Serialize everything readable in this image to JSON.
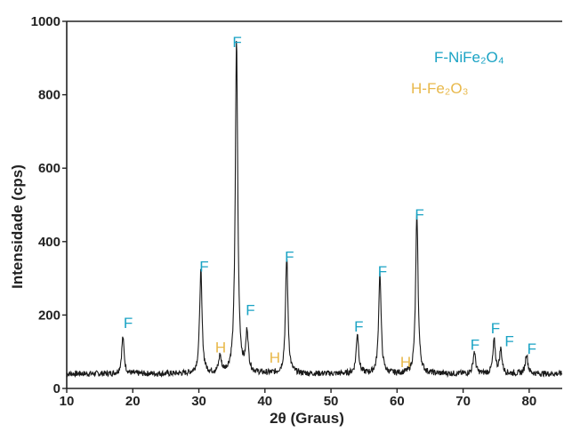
{
  "chart_data": {
    "type": "line",
    "title": "",
    "xlabel": "2θ (Graus)",
    "ylabel": "Intensidade (cps)",
    "xlim": [
      10,
      85
    ],
    "ylim": [
      0,
      1000
    ],
    "grid": false,
    "legend_position": "top-right",
    "xticks": [
      10,
      20,
      30,
      40,
      50,
      60,
      70,
      80
    ],
    "yticks": [
      0,
      200,
      400,
      600,
      800,
      1000
    ],
    "xtick_labels": [
      "10",
      "20",
      "30",
      "40",
      "50",
      "60",
      "70",
      "80"
    ],
    "ytick_labels": [
      "0",
      "200",
      "400",
      "600",
      "800",
      "1000"
    ],
    "line_color": "#1a1a1a",
    "baseline": 40,
    "noise": 8,
    "peaks": [
      {
        "x": 18.5,
        "height": 100,
        "phase": "F"
      },
      {
        "x": 30.3,
        "height": 280,
        "phase": "F"
      },
      {
        "x": 33.2,
        "height": 45,
        "phase": "H"
      },
      {
        "x": 35.7,
        "height": 905,
        "phase": "F"
      },
      {
        "x": 37.3,
        "height": 110,
        "phase": "F"
      },
      {
        "x": 43.3,
        "height": 320,
        "phase": "F"
      },
      {
        "x": 54.0,
        "height": 110,
        "phase": "F"
      },
      {
        "x": 57.4,
        "height": 275,
        "phase": "F"
      },
      {
        "x": 63.0,
        "height": 435,
        "phase": "F"
      },
      {
        "x": 71.7,
        "height": 60,
        "phase": "F"
      },
      {
        "x": 74.7,
        "height": 90,
        "phase": "F"
      },
      {
        "x": 75.7,
        "height": 65,
        "phase": "F"
      },
      {
        "x": 79.6,
        "height": 55,
        "phase": "F"
      }
    ],
    "annotations": [
      {
        "text": "F",
        "x": 19.3,
        "y": 165,
        "phase": "F"
      },
      {
        "text": "F",
        "x": 30.8,
        "y": 318,
        "phase": "F"
      },
      {
        "text": "H",
        "x": 33.3,
        "y": 98,
        "phase": "H"
      },
      {
        "text": "F",
        "x": 35.8,
        "y": 930,
        "phase": "F"
      },
      {
        "text": "F",
        "x": 37.8,
        "y": 200,
        "phase": "F"
      },
      {
        "text": "H",
        "x": 41.5,
        "y": 70,
        "phase": "H"
      },
      {
        "text": "F",
        "x": 43.7,
        "y": 345,
        "phase": "F"
      },
      {
        "text": "F",
        "x": 54.2,
        "y": 155,
        "phase": "F"
      },
      {
        "text": "F",
        "x": 57.8,
        "y": 305,
        "phase": "F"
      },
      {
        "text": "H",
        "x": 61.3,
        "y": 58,
        "phase": "H"
      },
      {
        "text": "F",
        "x": 63.4,
        "y": 460,
        "phase": "F"
      },
      {
        "text": "F",
        "x": 71.8,
        "y": 105,
        "phase": "F"
      },
      {
        "text": "F",
        "x": 74.9,
        "y": 150,
        "phase": "F"
      },
      {
        "text": "F",
        "x": 77.0,
        "y": 115,
        "phase": "F"
      },
      {
        "text": "F",
        "x": 80.4,
        "y": 95,
        "phase": "F"
      }
    ],
    "legend": [
      {
        "label": "F-NiFe₂O₄",
        "phase": "F",
        "color": "#1aa3c4"
      },
      {
        "label": "H-Fe₂O₃",
        "phase": "H",
        "color": "#e8b84a"
      }
    ],
    "phase_colors": {
      "F": "#1aa3c4",
      "H": "#e8b84a"
    }
  }
}
